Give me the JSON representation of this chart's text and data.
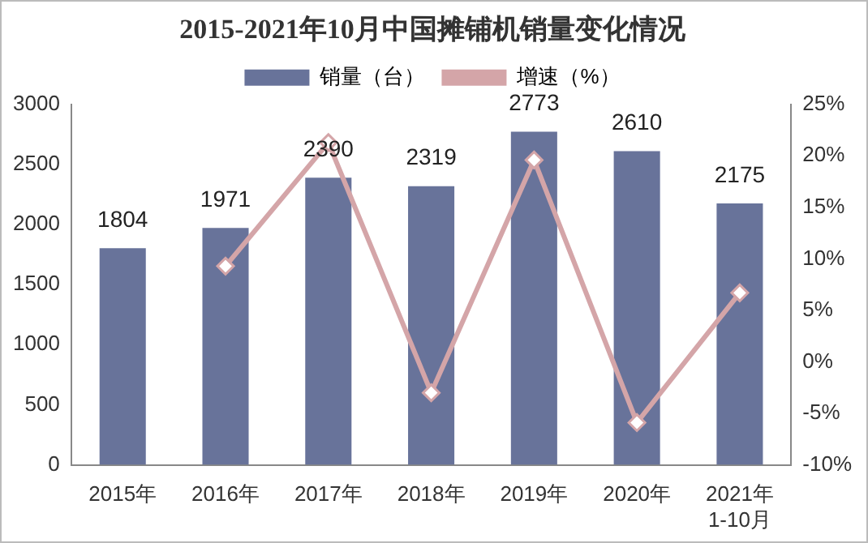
{
  "chart_data": {
    "type": "bar",
    "title": "2015-2021年10月中国摊铺机销量变化情况",
    "categories": [
      "2015年",
      "2016年",
      "2017年",
      "2018年",
      "2019年",
      "2020年",
      "2021年\n1-10月"
    ],
    "series": [
      {
        "name": "销量（台）",
        "color": "#68739a",
        "values": [
          1804,
          1971,
          2390,
          2319,
          2773,
          2610,
          2175
        ],
        "value_labels": [
          "1804",
          "1971",
          "2390",
          "2319",
          "2773",
          "2610",
          "2175"
        ]
      },
      {
        "name": "增速（%）",
        "type": "line",
        "axis": "y2",
        "color": "#d4a5a8",
        "marker": "diamond",
        "values": [
          null,
          9.3,
          21.3,
          -3.0,
          19.6,
          -5.9,
          6.7
        ]
      }
    ],
    "ylim": [
      0,
      3000
    ],
    "yticks": [
      0,
      500,
      1000,
      1500,
      2000,
      2500,
      3000
    ],
    "y2lim": [
      -10,
      25
    ],
    "y2ticks": [
      {
        "value": -10,
        "label": "-10%"
      },
      {
        "value": -5,
        "label": "-5%"
      },
      {
        "value": 0,
        "label": "0%"
      },
      {
        "value": 5,
        "label": "5%"
      },
      {
        "value": 10,
        "label": "10%"
      },
      {
        "value": 15,
        "label": "15%"
      },
      {
        "value": 20,
        "label": "20%"
      },
      {
        "value": 25,
        "label": "25%"
      }
    ],
    "grid": false,
    "legend": "top"
  }
}
